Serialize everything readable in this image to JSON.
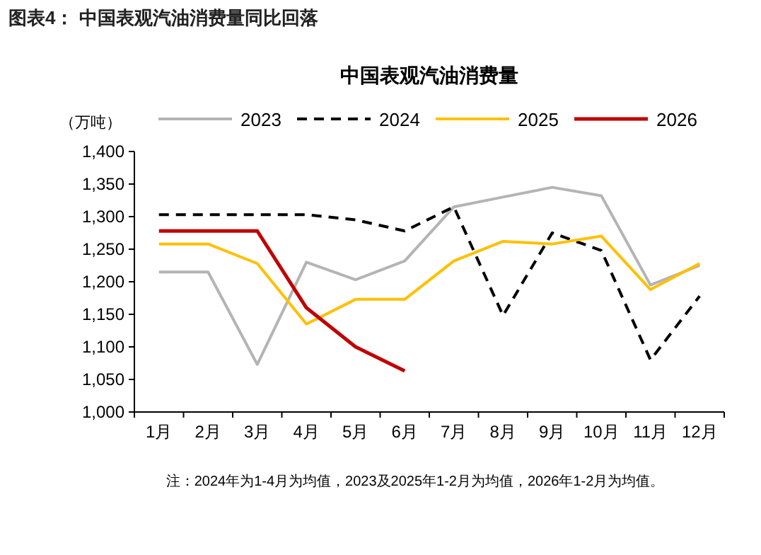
{
  "chart_data": {
    "type": "line",
    "title": "图表4： 中国表观汽油消费量同比回落",
    "subtitle": "中国表观汽油消费量",
    "ylabel": "（万吨）",
    "categories": [
      "1月",
      "2月",
      "3月",
      "4月",
      "5月",
      "6月",
      "7月",
      "8月",
      "9月",
      "10月",
      "11月",
      "12月"
    ],
    "series": [
      {
        "name": "2023",
        "color": "#b4b4b4",
        "line_style": "solid",
        "values": [
          1215,
          1215,
          1073,
          1230,
          1203,
          1232,
          1315,
          1330,
          1345,
          1332,
          1195,
          1225
        ]
      },
      {
        "name": "2024",
        "color": "#000000",
        "line_style": "dashed",
        "values": [
          1303,
          1303,
          1303,
          1303,
          1295,
          1278,
          1315,
          1148,
          1275,
          1248,
          1080,
          1178
        ]
      },
      {
        "name": "2025",
        "color": "#ffc000",
        "line_style": "solid",
        "values": [
          1258,
          1258,
          1228,
          1135,
          1173,
          1173,
          1232,
          1262,
          1258,
          1270,
          1188,
          1228
        ]
      },
      {
        "name": "2026",
        "color": "#c00000",
        "line_style": "solid",
        "values": [
          1278,
          1278,
          1278,
          1160,
          1100,
          1063,
          null,
          null,
          null,
          null,
          null,
          null
        ]
      }
    ],
    "ylim": [
      1000,
      1400
    ],
    "yticks": [
      {
        "value": 1000,
        "label": "1,000"
      },
      {
        "value": 1050,
        "label": "1,050"
      },
      {
        "value": 1100,
        "label": "1,100"
      },
      {
        "value": 1150,
        "label": "1,150"
      },
      {
        "value": 1200,
        "label": "1,200"
      },
      {
        "value": 1250,
        "label": "1,250"
      },
      {
        "value": 1300,
        "label": "1,300"
      },
      {
        "value": 1350,
        "label": "1,350"
      },
      {
        "value": 1400,
        "label": "1,400"
      }
    ],
    "grid": false,
    "legend": "top",
    "marker": "none",
    "annotations": [
      "注：2024年为1-4月为均值，2023及2025年1-2月为均值，2026年1-2月为均值。"
    ]
  }
}
